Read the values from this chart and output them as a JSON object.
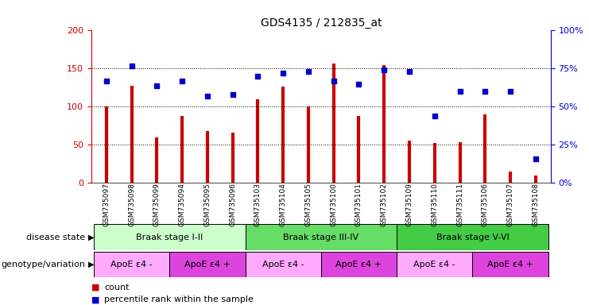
{
  "title": "GDS4135 / 212835_at",
  "samples": [
    "GSM735097",
    "GSM735098",
    "GSM735099",
    "GSM735094",
    "GSM735095",
    "GSM735096",
    "GSM735103",
    "GSM735104",
    "GSM735105",
    "GSM735100",
    "GSM735101",
    "GSM735102",
    "GSM735109",
    "GSM735110",
    "GSM735111",
    "GSM735106",
    "GSM735107",
    "GSM735108"
  ],
  "counts": [
    100,
    128,
    60,
    88,
    68,
    66,
    110,
    126,
    100,
    157,
    88,
    155,
    56,
    52,
    54,
    90,
    15,
    10
  ],
  "percentiles": [
    67,
    77,
    64,
    67,
    57,
    58,
    70,
    72,
    73,
    67,
    65,
    74,
    73,
    44,
    60,
    60,
    60,
    16
  ],
  "ylim_left": [
    0,
    200
  ],
  "ylim_right": [
    0,
    100
  ],
  "yticks_left": [
    0,
    50,
    100,
    150,
    200
  ],
  "yticks_right": [
    0,
    25,
    50,
    75,
    100
  ],
  "bar_color": "#CC0000",
  "dot_color": "#0000CC",
  "disease_state_groups": [
    {
      "label": "Braak stage I-II",
      "start": 0,
      "end": 6,
      "color": "#CCFFCC"
    },
    {
      "label": "Braak stage III-IV",
      "start": 6,
      "end": 12,
      "color": "#66DD66"
    },
    {
      "label": "Braak stage V-VI",
      "start": 12,
      "end": 18,
      "color": "#44CC44"
    }
  ],
  "genotype_groups": [
    {
      "label": "ApoE ε4 -",
      "start": 0,
      "end": 3,
      "color": "#FFAAFF"
    },
    {
      "label": "ApoE ε4 +",
      "start": 3,
      "end": 6,
      "color": "#DD44DD"
    },
    {
      "label": "ApoE ε4 -",
      "start": 6,
      "end": 9,
      "color": "#FFAAFF"
    },
    {
      "label": "ApoE ε4 +",
      "start": 9,
      "end": 12,
      "color": "#DD44DD"
    },
    {
      "label": "ApoE ε4 -",
      "start": 12,
      "end": 15,
      "color": "#FFAAFF"
    },
    {
      "label": "ApoE ε4 +",
      "start": 15,
      "end": 18,
      "color": "#DD44DD"
    }
  ],
  "legend_count_label": "count",
  "legend_pct_label": "percentile rank within the sample",
  "disease_state_label": "disease state",
  "genotype_label": "genotype/variation"
}
